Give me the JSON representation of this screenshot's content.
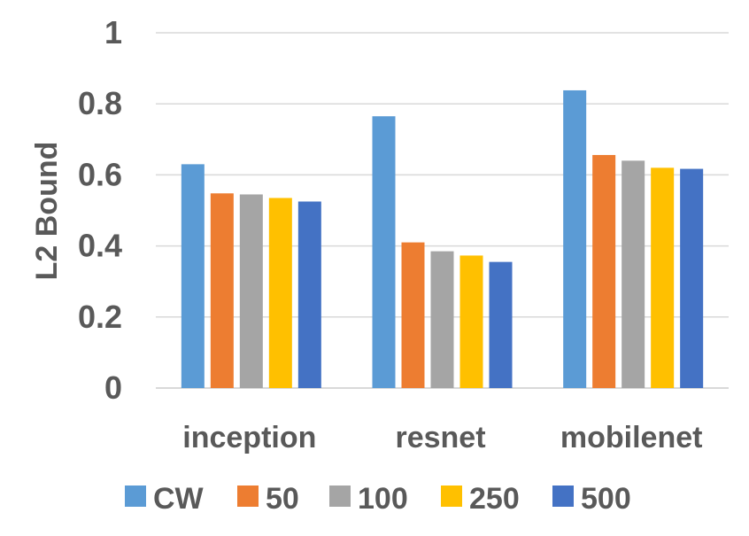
{
  "chart_data": {
    "type": "bar",
    "title": "",
    "xlabel": "",
    "ylabel": "L2 Bound",
    "ylim": [
      0,
      1
    ],
    "yticks": [
      "0",
      "0.2",
      "0.4",
      "0.6",
      "0.8",
      "1"
    ],
    "grid": true,
    "legend_position": "bottom",
    "categories": [
      "inception",
      "resnet",
      "mobilenet"
    ],
    "series": [
      {
        "name": "CW",
        "color": "#5b9bd5",
        "values": [
          0.63,
          0.765,
          0.838
        ]
      },
      {
        "name": "50",
        "color": "#ed7d31",
        "values": [
          0.548,
          0.41,
          0.656
        ]
      },
      {
        "name": "100",
        "color": "#a5a5a5",
        "values": [
          0.545,
          0.385,
          0.64
        ]
      },
      {
        "name": "250",
        "color": "#ffc000",
        "values": [
          0.535,
          0.373,
          0.62
        ]
      },
      {
        "name": "500",
        "color": "#4472c4",
        "values": [
          0.525,
          0.355,
          0.617
        ]
      }
    ]
  }
}
